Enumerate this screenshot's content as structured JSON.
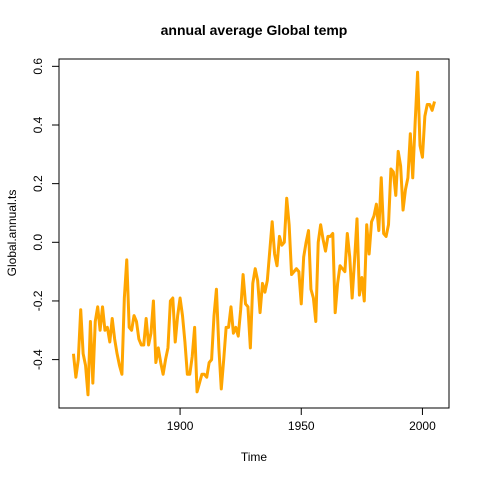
{
  "chart_data": {
    "type": "line",
    "title": "annual average Global temp",
    "x_label": "Time",
    "y_label": "Global.annual.ts",
    "x": [
      1856,
      1857,
      1858,
      1859,
      1860,
      1861,
      1862,
      1863,
      1864,
      1865,
      1866,
      1867,
      1868,
      1869,
      1870,
      1871,
      1872,
      1873,
      1874,
      1875,
      1876,
      1877,
      1878,
      1879,
      1880,
      1881,
      1882,
      1883,
      1884,
      1885,
      1886,
      1887,
      1888,
      1889,
      1890,
      1891,
      1892,
      1893,
      1894,
      1895,
      1896,
      1897,
      1898,
      1899,
      1900,
      1901,
      1902,
      1903,
      1904,
      1905,
      1906,
      1907,
      1908,
      1909,
      1910,
      1911,
      1912,
      1913,
      1914,
      1915,
      1916,
      1917,
      1918,
      1919,
      1920,
      1921,
      1922,
      1923,
      1924,
      1925,
      1926,
      1927,
      1928,
      1929,
      1930,
      1931,
      1932,
      1933,
      1934,
      1935,
      1936,
      1937,
      1938,
      1939,
      1940,
      1941,
      1942,
      1943,
      1944,
      1945,
      1946,
      1947,
      1948,
      1949,
      1950,
      1951,
      1952,
      1953,
      1954,
      1955,
      1956,
      1957,
      1958,
      1959,
      1960,
      1961,
      1962,
      1963,
      1964,
      1965,
      1966,
      1967,
      1968,
      1969,
      1970,
      1971,
      1972,
      1973,
      1974,
      1975,
      1976,
      1977,
      1978,
      1979,
      1980,
      1981,
      1982,
      1983,
      1984,
      1985,
      1986,
      1987,
      1988,
      1989,
      1990,
      1991,
      1992,
      1993,
      1994,
      1995,
      1996,
      1997,
      1998,
      1999,
      2000,
      2001,
      2002,
      2003,
      2004,
      2005
    ],
    "series": [
      {
        "color": "#FFA500",
        "values": [
          -0.38,
          -0.46,
          -0.4,
          -0.23,
          -0.38,
          -0.42,
          -0.52,
          -0.27,
          -0.48,
          -0.27,
          -0.22,
          -0.3,
          -0.22,
          -0.3,
          -0.29,
          -0.34,
          -0.26,
          -0.33,
          -0.38,
          -0.42,
          -0.45,
          -0.19,
          -0.06,
          -0.29,
          -0.3,
          -0.25,
          -0.27,
          -0.33,
          -0.35,
          -0.35,
          -0.26,
          -0.35,
          -0.31,
          -0.2,
          -0.41,
          -0.36,
          -0.41,
          -0.45,
          -0.4,
          -0.36,
          -0.2,
          -0.19,
          -0.34,
          -0.25,
          -0.19,
          -0.25,
          -0.34,
          -0.45,
          -0.45,
          -0.39,
          -0.29,
          -0.51,
          -0.48,
          -0.45,
          -0.45,
          -0.46,
          -0.41,
          -0.4,
          -0.25,
          -0.16,
          -0.36,
          -0.5,
          -0.4,
          -0.29,
          -0.29,
          -0.22,
          -0.31,
          -0.29,
          -0.32,
          -0.23,
          -0.11,
          -0.21,
          -0.22,
          -0.36,
          -0.14,
          -0.09,
          -0.13,
          -0.24,
          -0.14,
          -0.17,
          -0.13,
          -0.03,
          0.07,
          -0.04,
          -0.08,
          0.02,
          -0.01,
          0.0,
          0.15,
          0.06,
          -0.11,
          -0.1,
          -0.09,
          -0.1,
          -0.21,
          -0.05,
          0.0,
          0.04,
          -0.16,
          -0.19,
          -0.27,
          0.0,
          0.06,
          0.01,
          -0.03,
          0.02,
          0.02,
          0.03,
          -0.24,
          -0.14,
          -0.08,
          -0.09,
          -0.1,
          0.03,
          -0.05,
          -0.19,
          -0.06,
          0.08,
          -0.18,
          -0.12,
          -0.2,
          0.06,
          -0.04,
          0.07,
          0.09,
          0.13,
          0.04,
          0.22,
          0.03,
          0.02,
          0.06,
          0.25,
          0.24,
          0.16,
          0.31,
          0.26,
          0.11,
          0.18,
          0.22,
          0.37,
          0.22,
          0.41,
          0.58,
          0.33,
          0.29,
          0.43,
          0.47,
          0.47,
          0.45,
          0.48
        ]
      }
    ],
    "xlim": [
      1850.04,
      2010.96
    ],
    "xticks": [
      1900,
      1950,
      2000
    ],
    "ylim": [
      -0.565,
      0.625
    ],
    "yticks": [
      -0.4,
      -0.2,
      {
        "value": 0,
        "label": "0.0"
      },
      0.2,
      0.4,
      0.6
    ],
    "grid": false
  }
}
